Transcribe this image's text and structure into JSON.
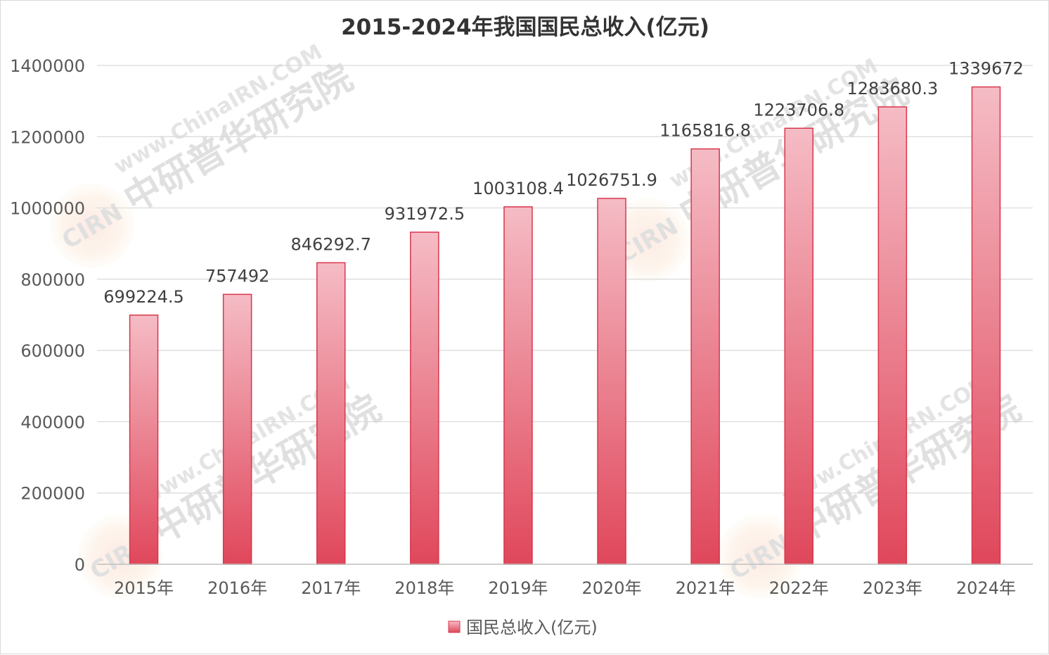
{
  "chart_data": {
    "type": "bar",
    "title": "2015-2024年我国国民总收入(亿元)",
    "categories": [
      "2015年",
      "2016年",
      "2017年",
      "2018年",
      "2019年",
      "2020年",
      "2021年",
      "2022年",
      "2023年",
      "2024年"
    ],
    "series": [
      {
        "name": "国民总收入(亿元)",
        "values": [
          699224.5,
          757492,
          846292.7,
          931972.5,
          1003108.4,
          1026751.9,
          1165816.8,
          1223706.8,
          1283680.3,
          1339672
        ],
        "labels": [
          "699224.5",
          "757492",
          "846292.7",
          "931972.5",
          "1003108.4",
          "1026751.9",
          "1165816.8",
          "1223706.8",
          "1283680.3",
          "1339672"
        ]
      }
    ],
    "yticks": [
      "0",
      "200000",
      "400000",
      "600000",
      "800000",
      "1000000",
      "1200000",
      "1400000"
    ],
    "ylim": [
      0,
      1400000
    ],
    "grid": true,
    "legend_position": "bottom-center",
    "colors": {
      "bar_top": "#f5bcc5",
      "bar_bottom": "#e0475b",
      "bar_border": "#d9364c",
      "grid": "#d9d9d9"
    }
  },
  "watermark": {
    "brand": "中研普华研究院",
    "url": "www.ChinaIRN.COM",
    "logo": "CIRN",
    "icon": "cirn-logo-icon"
  }
}
